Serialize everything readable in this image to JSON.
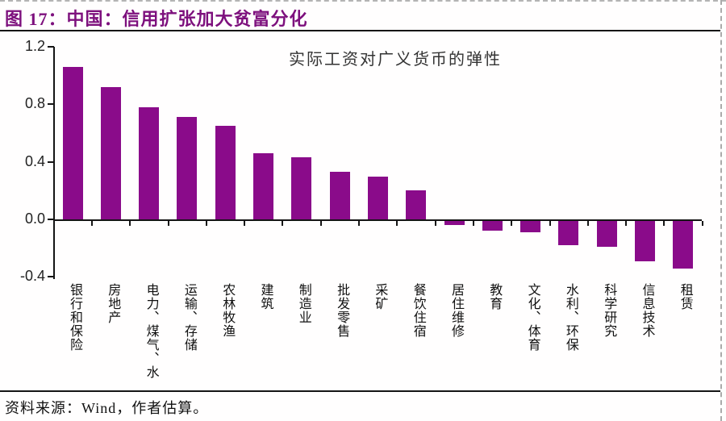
{
  "header": {
    "title": "图 17：中国：信用扩张加大贫富分化"
  },
  "footer": {
    "source": "资料来源：Wind，作者估算。"
  },
  "colors": {
    "figure_title": "#7d107d",
    "bar": "#8a0b8a",
    "axis": "#151515"
  },
  "chart_data": {
    "type": "bar",
    "title": "实际工资对广义货币的弹性",
    "categories": [
      "银行和保险",
      "房地产",
      "电力、煤气、水",
      "运输、存储",
      "农林牧渔",
      "建筑",
      "制造业",
      "批发零售",
      "采矿",
      "餐饮住宿",
      "居住维修",
      "教育",
      "文化、体育",
      "水利、环保",
      "科学研究",
      "信息技术",
      "租赁"
    ],
    "values": [
      1.06,
      0.92,
      0.78,
      0.71,
      0.65,
      0.46,
      0.43,
      0.33,
      0.3,
      0.2,
      -0.03,
      -0.07,
      -0.08,
      -0.17,
      -0.18,
      -0.28,
      -0.33
    ],
    "xlabel": "",
    "ylabel": "",
    "ylim": [
      -0.4,
      1.2
    ],
    "ytick_labels": [
      "1.2",
      "0.8",
      "0.4",
      "0.0",
      "-0.4"
    ],
    "grid": false,
    "legend": false,
    "bar_color": "#8a0b8a",
    "orientation": "vertical",
    "category_label_orientation": "vertical-upright"
  }
}
